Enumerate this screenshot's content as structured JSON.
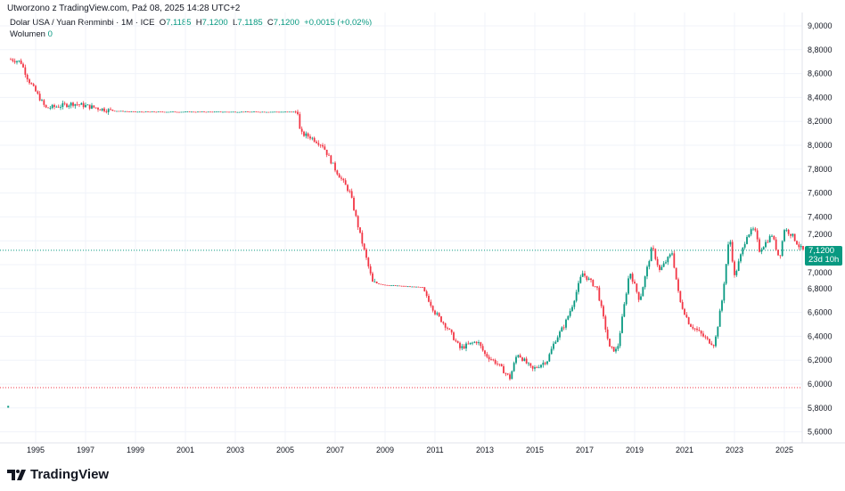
{
  "header": {
    "created": "Utworzono z TradingView.com, Paź 08, 2025 14:28 UTC+2",
    "symbol": "Dolar USA / Yuan Renminbi · 1M · ICE",
    "o_label": "O",
    "o": "7,1185",
    "h_label": "H",
    "h": "7,1200",
    "l_label": "L",
    "l": "7,1185",
    "c_label": "C",
    "c": "7,1200",
    "change": "+0,0015 (+0,02%)",
    "volume_label": "Wolumen",
    "volume": "0"
  },
  "price_label": {
    "price": "7,1200",
    "countdown": "23d 10h"
  },
  "logo": "TradingView",
  "colors": {
    "up": "#089981",
    "down": "#f23645"
  },
  "chart_data": {
    "type": "candlestick",
    "title": "Dolar USA / Yuan Renminbi · 1M · ICE",
    "ylim": [
      5.55,
      9.05
    ],
    "yticks": [
      "9,0000",
      "8,8000",
      "8,6000",
      "8,4000",
      "8,2000",
      "8,0000",
      "7,8000",
      "7,6000",
      "7,4000",
      "7,2000",
      "7,0000",
      "6,8000",
      "6,6000",
      "6,4000",
      "6,2000",
      "6,0000",
      "5,8000",
      "5,6000"
    ],
    "ytick_values": [
      9.0,
      8.8,
      8.6,
      8.4,
      8.2,
      8.0,
      7.8,
      7.6,
      7.4,
      7.2,
      7.0,
      6.8,
      6.6,
      6.4,
      6.2,
      6.0,
      5.8,
      5.6
    ],
    "xticks": [
      "1995",
      "1997",
      "1999",
      "2001",
      "2003",
      "2005",
      "2007",
      "2009",
      "2011",
      "2013",
      "2015",
      "2017",
      "2019",
      "2021",
      "2023",
      "2025"
    ],
    "xtick_values": [
      1995,
      1997,
      1999,
      2001,
      2003,
      2005,
      2007,
      2009,
      2011,
      2013,
      2015,
      2017,
      2019,
      2021,
      2023,
      2025
    ],
    "xlim": [
      1993.8,
      2025.9
    ],
    "outlier_point": [
      1993.9,
      5.81
    ],
    "reference_lines": [
      7.12,
      5.97
    ],
    "path": [
      [
        1994.0,
        8.72
      ],
      [
        1994.4,
        8.7
      ],
      [
        1994.7,
        8.55
      ],
      [
        1995.0,
        8.45
      ],
      [
        1995.4,
        8.31
      ],
      [
        1996.0,
        8.33
      ],
      [
        1996.5,
        8.35
      ],
      [
        1997.0,
        8.33
      ],
      [
        1998.0,
        8.29
      ],
      [
        1999.0,
        8.28
      ],
      [
        2005.5,
        8.28
      ],
      [
        2005.6,
        8.1
      ],
      [
        2006.0,
        8.07
      ],
      [
        2006.5,
        8.0
      ],
      [
        2007.0,
        7.8
      ],
      [
        2007.6,
        7.6
      ],
      [
        2008.0,
        7.25
      ],
      [
        2008.5,
        6.85
      ],
      [
        2009.0,
        6.83
      ],
      [
        2010.5,
        6.81
      ],
      [
        2011.0,
        6.6
      ],
      [
        2011.5,
        6.47
      ],
      [
        2012.0,
        6.3
      ],
      [
        2012.7,
        6.36
      ],
      [
        2013.0,
        6.25
      ],
      [
        2013.5,
        6.17
      ],
      [
        2014.0,
        6.05
      ],
      [
        2014.3,
        6.26
      ],
      [
        2014.9,
        6.12
      ],
      [
        2015.5,
        6.2
      ],
      [
        2015.8,
        6.36
      ],
      [
        2016.2,
        6.5
      ],
      [
        2016.5,
        6.66
      ],
      [
        2016.9,
        6.93
      ],
      [
        2017.5,
        6.8
      ],
      [
        2018.0,
        6.3
      ],
      [
        2018.3,
        6.28
      ],
      [
        2018.8,
        6.95
      ],
      [
        2019.2,
        6.7
      ],
      [
        2019.7,
        7.15
      ],
      [
        2020.0,
        6.95
      ],
      [
        2020.5,
        7.1
      ],
      [
        2020.8,
        6.7
      ],
      [
        2021.2,
        6.5
      ],
      [
        2021.5,
        6.45
      ],
      [
        2021.9,
        6.37
      ],
      [
        2022.2,
        6.33
      ],
      [
        2022.5,
        6.7
      ],
      [
        2022.8,
        7.25
      ],
      [
        2023.0,
        6.9
      ],
      [
        2023.5,
        7.25
      ],
      [
        2023.8,
        7.3
      ],
      [
        2024.0,
        7.12
      ],
      [
        2024.5,
        7.25
      ],
      [
        2024.8,
        7.05
      ],
      [
        2025.0,
        7.3
      ],
      [
        2025.3,
        7.25
      ],
      [
        2025.6,
        7.15
      ],
      [
        2025.75,
        7.12
      ]
    ]
  }
}
